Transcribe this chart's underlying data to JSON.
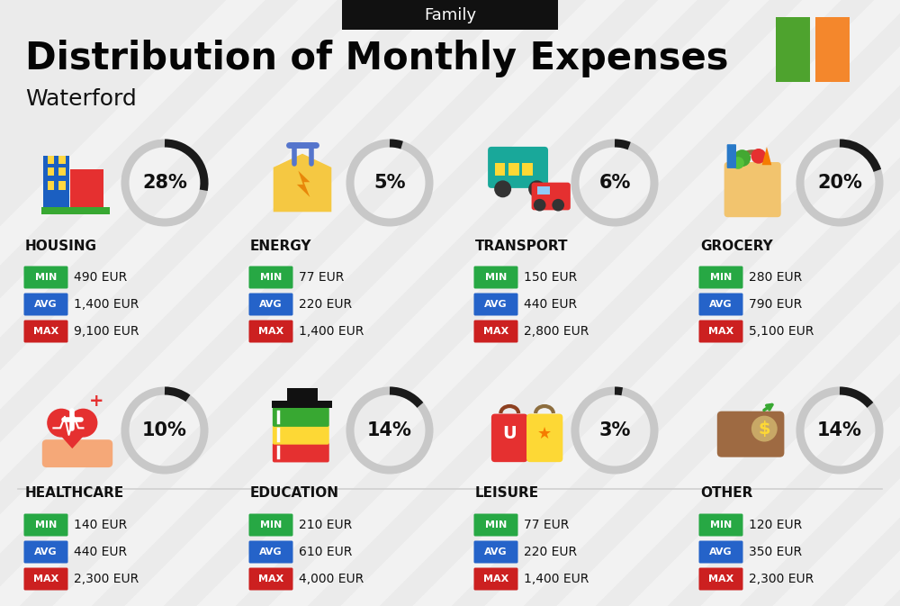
{
  "title": "Distribution of Monthly Expenses",
  "subtitle": "Waterford",
  "header_label": "Family",
  "bg_color": "#ebebeb",
  "categories": [
    {
      "name": "HOUSING",
      "pct": 28,
      "min": "490 EUR",
      "avg": "1,400 EUR",
      "max": "9,100 EUR",
      "row": 0,
      "col": 0
    },
    {
      "name": "ENERGY",
      "pct": 5,
      "min": "77 EUR",
      "avg": "220 EUR",
      "max": "1,400 EUR",
      "row": 0,
      "col": 1
    },
    {
      "name": "TRANSPORT",
      "pct": 6,
      "min": "150 EUR",
      "avg": "440 EUR",
      "max": "2,800 EUR",
      "row": 0,
      "col": 2
    },
    {
      "name": "GROCERY",
      "pct": 20,
      "min": "280 EUR",
      "avg": "790 EUR",
      "max": "5,100 EUR",
      "row": 0,
      "col": 3
    },
    {
      "name": "HEALTHCARE",
      "pct": 10,
      "min": "140 EUR",
      "avg": "440 EUR",
      "max": "2,300 EUR",
      "row": 1,
      "col": 0
    },
    {
      "name": "EDUCATION",
      "pct": 14,
      "min": "210 EUR",
      "avg": "610 EUR",
      "max": "4,000 EUR",
      "row": 1,
      "col": 1
    },
    {
      "name": "LEISURE",
      "pct": 3,
      "min": "77 EUR",
      "avg": "220 EUR",
      "max": "1,400 EUR",
      "row": 1,
      "col": 2
    },
    {
      "name": "OTHER",
      "pct": 14,
      "min": "120 EUR",
      "avg": "350 EUR",
      "max": "2,300 EUR",
      "row": 1,
      "col": 3
    }
  ],
  "min_color": "#27a844",
  "avg_color": "#2563c9",
  "max_color": "#cc2020",
  "donut_dark": "#1a1a1a",
  "donut_light": "#c8c8c8",
  "ireland_green": "#4ea32e",
  "ireland_orange": "#f4872c",
  "stripe_color": "#ffffff",
  "separator_color": "#d0d0d0"
}
